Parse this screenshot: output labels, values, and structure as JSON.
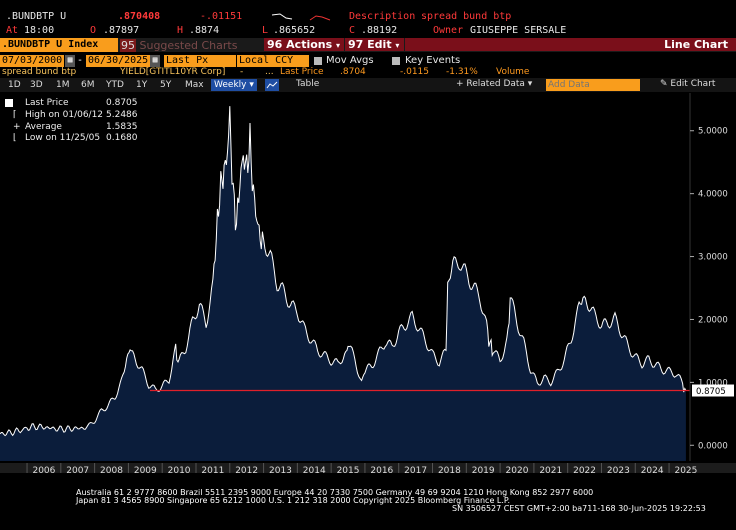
{
  "quote": {
    "ticker": ".BUNDBTP U",
    "last": ".870408",
    "change": "-.01151",
    "description_label": "Description",
    "description": "spread bund btp",
    "at_label": "At",
    "time": "18:00",
    "open_label": "O",
    "open": ".87897",
    "high_label": "H",
    "high": ".8874",
    "low_label": "L",
    "low": ".865652",
    "close_label": "C",
    "close": ".88192",
    "owner_label": "Owner",
    "owner": "GIUSEPPE SERSALE"
  },
  "menu": {
    "security": ".BUNDBTP U Index",
    "suggested": "Suggested Charts",
    "suggested_num": "95",
    "actions_num": "96",
    "actions": "Actions",
    "edit_num": "97",
    "edit": "Edit",
    "title": "Line Chart"
  },
  "controls": {
    "start_date": "07/03/2000",
    "end_date": "06/30/2025",
    "price_field": "Last Px",
    "currency": "Local CCY",
    "mov_avgs": "Mov Avgs",
    "key_events": "Key Events"
  },
  "info": {
    "name": "spread bund btp",
    "yield_ticker": "YIELD[GTITL10YR Corp]",
    "dots": "...",
    "last_price_label": "Last Price",
    "last_price": ".8704",
    "chg": "-.0115",
    "pct": "-1.31%",
    "volume": "Volume"
  },
  "tabs": [
    "1D",
    "3D",
    "1M",
    "6M",
    "YTD",
    "1Y",
    "5Y",
    "Max"
  ],
  "period": "Weekly",
  "table_label": "Table",
  "related_data": "+ Related Data",
  "add_data_placeholder": "Add Data",
  "edit_chart": "Edit Chart",
  "legend": {
    "last_label": "Last Price",
    "last": "0.8705",
    "high_label": "High on 01/06/12",
    "high": "5.2486",
    "avg_label": "Average",
    "avg": "1.5835",
    "low_label": "Low on 11/25/05",
    "low": "0.1680"
  },
  "chart_data": {
    "type": "area",
    "series": [
      {
        "name": "Last Price",
        "x": [
          2005.2,
          2005.5,
          2005.8,
          2006.0,
          2006.3,
          2006.6,
          2006.9,
          2007.2,
          2007.5,
          2007.8,
          2008.0,
          2008.2,
          2008.4,
          2008.6,
          2008.8,
          2008.95,
          2009.05,
          2009.2,
          2009.4,
          2009.6,
          2009.8,
          2010.0,
          2010.2,
          2010.4,
          2010.5,
          2010.7,
          2010.9,
          2011.1,
          2011.3,
          2011.5,
          2011.6,
          2011.7,
          2011.8,
          2011.9,
          2012.0,
          2012.1,
          2012.2,
          2012.3,
          2012.4,
          2012.5,
          2012.6,
          2012.7,
          2012.8,
          2012.9,
          2013.0,
          2013.2,
          2013.4,
          2013.6,
          2013.8,
          2014.0,
          2014.2,
          2014.4,
          2014.6,
          2014.8,
          2015.0,
          2015.2,
          2015.4,
          2015.5,
          2015.7,
          2015.9,
          2016.0,
          2016.2,
          2016.4,
          2016.6,
          2016.8,
          2017.0,
          2017.2,
          2017.4,
          2017.6,
          2017.8,
          2018.0,
          2018.2,
          2018.4,
          2018.45,
          2018.6,
          2018.8,
          2019.0,
          2019.2,
          2019.4,
          2019.6,
          2019.7,
          2019.8,
          2020.0,
          2020.2,
          2020.3,
          2020.5,
          2020.7,
          2020.9,
          2021.1,
          2021.3,
          2021.5,
          2021.7,
          2021.9,
          2022.1,
          2022.3,
          2022.45,
          2022.6,
          2022.8,
          2023.0,
          2023.2,
          2023.4,
          2023.6,
          2023.8,
          2024.0,
          2024.2,
          2024.4,
          2024.6,
          2024.8,
          2025.0,
          2025.2,
          2025.4,
          2025.5
        ],
        "y": [
          0.18,
          0.2,
          0.24,
          0.28,
          0.3,
          0.28,
          0.26,
          0.26,
          0.27,
          0.28,
          0.38,
          0.55,
          0.65,
          0.8,
          1.05,
          1.35,
          1.55,
          1.4,
          1.2,
          0.95,
          0.85,
          0.9,
          1.0,
          1.5,
          1.3,
          1.55,
          2.0,
          2.3,
          2.0,
          2.6,
          3.3,
          4.0,
          4.3,
          4.5,
          5.2,
          4.0,
          3.5,
          4.2,
          4.6,
          4.4,
          4.8,
          4.0,
          3.6,
          3.3,
          3.2,
          3.0,
          2.6,
          2.5,
          2.3,
          2.2,
          1.9,
          1.7,
          1.5,
          1.4,
          1.3,
          1.25,
          1.4,
          1.6,
          1.35,
          1.0,
          1.2,
          1.3,
          1.5,
          1.7,
          1.6,
          1.8,
          1.9,
          2.0,
          1.8,
          1.6,
          1.4,
          1.3,
          1.5,
          2.5,
          2.9,
          3.0,
          2.8,
          2.6,
          2.4,
          1.9,
          1.6,
          1.5,
          1.3,
          1.6,
          2.3,
          1.9,
          1.6,
          1.2,
          1.0,
          1.1,
          1.05,
          1.2,
          1.4,
          1.7,
          2.1,
          2.4,
          2.2,
          2.0,
          1.85,
          1.9,
          2.0,
          1.8,
          1.6,
          1.45,
          1.35,
          1.4,
          1.3,
          1.2,
          1.15,
          1.1,
          0.95,
          0.87
        ]
      }
    ],
    "x_labels": [
      "2006",
      "2007",
      "2008",
      "2009",
      "2010",
      "2011",
      "2012",
      "2013",
      "2014",
      "2015",
      "2016",
      "2017",
      "2018",
      "2019",
      "2020",
      "2021",
      "2022",
      "2023",
      "2024",
      "2025"
    ],
    "y_ticks": [
      "0.0000",
      "1.0000",
      "2.0000",
      "3.0000",
      "4.0000",
      "5.0000"
    ],
    "ylim": [
      -0.25,
      5.6
    ],
    "last_value_label": "0.8705",
    "reference_line": 0.8705,
    "grid": false
  },
  "footer": {
    "line1": "Australia 61 2 9777 8600 Brazil 5511 2395 9000 Europe 44 20 7330 7500 Germany 49 69 9204 1210 Hong Kong 852 2977 6000",
    "line2": "Japan 81 3 4565 8900        Singapore 65 6212 1000        U.S. 1 212 318 2000        Copyright 2025 Bloomberg Finance L.P.",
    "line3": "SN 3506527 CEST GMT+2:00 ba711-168 30-Jun-2025 19:22:53"
  },
  "colors": {
    "accent": "#f99d1c",
    "area": "#0b1d3b",
    "line": "#ffffff",
    "ref": "#e0202a",
    "menu": "#7a0f1a"
  }
}
